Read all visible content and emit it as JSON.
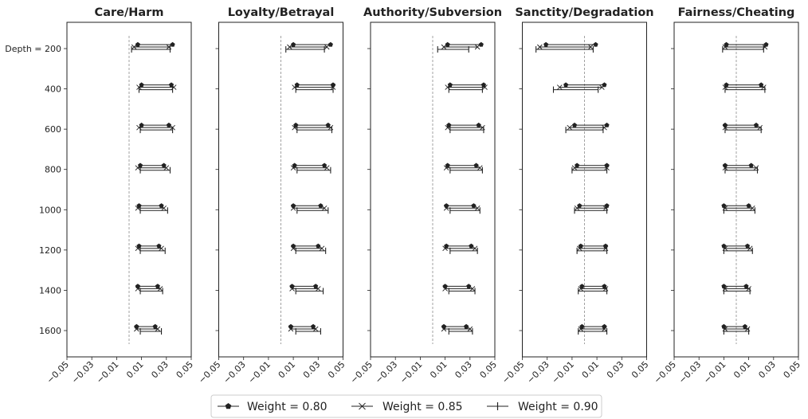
{
  "chart_data": {
    "type": "interval",
    "y_tick_labels": [
      "Depth = 200",
      "400",
      "600",
      "800",
      "1000",
      "1200",
      "1400",
      "1600"
    ],
    "y_values": [
      200,
      400,
      600,
      800,
      1000,
      1200,
      1400,
      1600
    ],
    "x_ticks": [
      -0.05,
      -0.03,
      -0.01,
      0.01,
      0.03,
      0.05
    ],
    "x_tick_labels": [
      "−0.05",
      "−0.03",
      "−0.01",
      "0.01",
      "0.03",
      "0.05"
    ],
    "xlim": [
      -0.05,
      0.05
    ],
    "reference_line": 0,
    "legend": [
      "Weight = 0.80",
      "Weight = 0.85",
      "Weight = 0.90"
    ],
    "legend_position": "bottom-center",
    "panels": [
      {
        "title": "Care/Harm",
        "series": [
          {
            "name": "Weight = 0.80",
            "intervals": [
              [
                0.007,
                0.035
              ],
              [
                0.01,
                0.034
              ],
              [
                0.01,
                0.032
              ],
              [
                0.009,
                0.028
              ],
              [
                0.008,
                0.026
              ],
              [
                0.008,
                0.024
              ],
              [
                0.007,
                0.023
              ],
              [
                0.006,
                0.021
              ]
            ]
          },
          {
            "name": "Weight = 0.85",
            "intervals": [
              [
                0.004,
                0.032
              ],
              [
                0.008,
                0.036
              ],
              [
                0.008,
                0.035
              ],
              [
                0.007,
                0.03
              ],
              [
                0.007,
                0.028
              ],
              [
                0.007,
                0.026
              ],
              [
                0.007,
                0.025
              ],
              [
                0.006,
                0.023
              ]
            ]
          },
          {
            "name": "Weight = 0.90",
            "intervals": [
              [
                0.002,
                0.033
              ],
              [
                0.008,
                0.035
              ],
              [
                0.009,
                0.035
              ],
              [
                0.009,
                0.033
              ],
              [
                0.009,
                0.031
              ],
              [
                0.009,
                0.029
              ],
              [
                0.009,
                0.027
              ],
              [
                0.009,
                0.026
              ]
            ]
          }
        ]
      },
      {
        "title": "Loyalty/Betrayal",
        "series": [
          {
            "name": "Weight = 0.80",
            "intervals": [
              [
                0.01,
                0.04
              ],
              [
                0.013,
                0.042
              ],
              [
                0.012,
                0.038
              ],
              [
                0.011,
                0.035
              ],
              [
                0.01,
                0.032
              ],
              [
                0.01,
                0.03
              ],
              [
                0.009,
                0.028
              ],
              [
                0.008,
                0.026
              ]
            ]
          },
          {
            "name": "Weight = 0.85",
            "intervals": [
              [
                0.007,
                0.037
              ],
              [
                0.011,
                0.042
              ],
              [
                0.011,
                0.04
              ],
              [
                0.01,
                0.037
              ],
              [
                0.01,
                0.035
              ],
              [
                0.01,
                0.033
              ],
              [
                0.009,
                0.03
              ],
              [
                0.008,
                0.028
              ]
            ]
          },
          {
            "name": "Weight = 0.90",
            "intervals": [
              [
                0.004,
                0.035
              ],
              [
                0.012,
                0.042
              ],
              [
                0.013,
                0.041
              ],
              [
                0.013,
                0.04
              ],
              [
                0.013,
                0.038
              ],
              [
                0.012,
                0.036
              ],
              [
                0.012,
                0.034
              ],
              [
                0.012,
                0.032
              ]
            ]
          }
        ]
      },
      {
        "title": "Authority/Subversion",
        "series": [
          {
            "name": "Weight = 0.80",
            "intervals": [
              [
                0.012,
                0.039
              ],
              [
                0.014,
                0.041
              ],
              [
                0.013,
                0.037
              ],
              [
                0.012,
                0.035
              ],
              [
                0.011,
                0.033
              ],
              [
                0.011,
                0.031
              ],
              [
                0.01,
                0.029
              ],
              [
                0.009,
                0.027
              ]
            ]
          },
          {
            "name": "Weight = 0.85",
            "intervals": [
              [
                0.009,
                0.036
              ],
              [
                0.012,
                0.042
              ],
              [
                0.012,
                0.04
              ],
              [
                0.011,
                0.038
              ],
              [
                0.011,
                0.036
              ],
              [
                0.01,
                0.034
              ],
              [
                0.01,
                0.032
              ],
              [
                0.009,
                0.03
              ]
            ]
          },
          {
            "name": "Weight = 0.90",
            "intervals": [
              [
                0.004,
                0.029
              ],
              [
                0.013,
                0.04
              ],
              [
                0.014,
                0.041
              ],
              [
                0.014,
                0.04
              ],
              [
                0.014,
                0.038
              ],
              [
                0.014,
                0.036
              ],
              [
                0.013,
                0.034
              ],
              [
                0.013,
                0.032
              ]
            ]
          }
        ]
      },
      {
        "title": "Sanctity/Degradation",
        "series": [
          {
            "name": "Weight = 0.80",
            "intervals": [
              [
                -0.031,
                0.009
              ],
              [
                -0.015,
                0.016
              ],
              [
                -0.008,
                0.018
              ],
              [
                -0.006,
                0.018
              ],
              [
                -0.004,
                0.018
              ],
              [
                -0.003,
                0.017
              ],
              [
                -0.002,
                0.016
              ],
              [
                -0.002,
                0.016
              ]
            ]
          },
          {
            "name": "Weight = 0.85",
            "intervals": [
              [
                -0.036,
                0.005
              ],
              [
                -0.02,
                0.014
              ],
              [
                -0.012,
                0.016
              ],
              [
                -0.008,
                0.018
              ],
              [
                -0.006,
                0.017
              ],
              [
                -0.004,
                0.017
              ],
              [
                -0.003,
                0.017
              ],
              [
                -0.003,
                0.016
              ]
            ]
          },
          {
            "name": "Weight = 0.90",
            "intervals": [
              [
                -0.039,
                0.007
              ],
              [
                -0.025,
                0.011
              ],
              [
                -0.015,
                0.015
              ],
              [
                -0.01,
                0.018
              ],
              [
                -0.008,
                0.018
              ],
              [
                -0.006,
                0.018
              ],
              [
                -0.005,
                0.018
              ],
              [
                -0.005,
                0.018
              ]
            ]
          }
        ]
      },
      {
        "title": "Fairness/Cheating",
        "series": [
          {
            "name": "Weight = 0.80",
            "intervals": [
              [
                -0.008,
                0.024
              ],
              [
                -0.008,
                0.02
              ],
              [
                -0.009,
                0.016
              ],
              [
                -0.009,
                0.012
              ],
              [
                -0.01,
                0.01
              ],
              [
                -0.01,
                0.009
              ],
              [
                -0.01,
                0.008
              ],
              [
                -0.01,
                0.007
              ]
            ]
          },
          {
            "name": "Weight = 0.85",
            "intervals": [
              [
                -0.009,
                0.023
              ],
              [
                -0.009,
                0.022
              ],
              [
                -0.009,
                0.019
              ],
              [
                -0.009,
                0.016
              ],
              [
                -0.009,
                0.013
              ],
              [
                -0.009,
                0.011
              ],
              [
                -0.009,
                0.01
              ],
              [
                -0.009,
                0.009
              ]
            ]
          },
          {
            "name": "Weight = 0.90",
            "intervals": [
              [
                -0.011,
                0.022
              ],
              [
                -0.009,
                0.023
              ],
              [
                -0.009,
                0.02
              ],
              [
                -0.009,
                0.017
              ],
              [
                -0.01,
                0.015
              ],
              [
                -0.01,
                0.013
              ],
              [
                -0.01,
                0.011
              ],
              [
                -0.01,
                0.01
              ]
            ]
          }
        ]
      }
    ]
  }
}
